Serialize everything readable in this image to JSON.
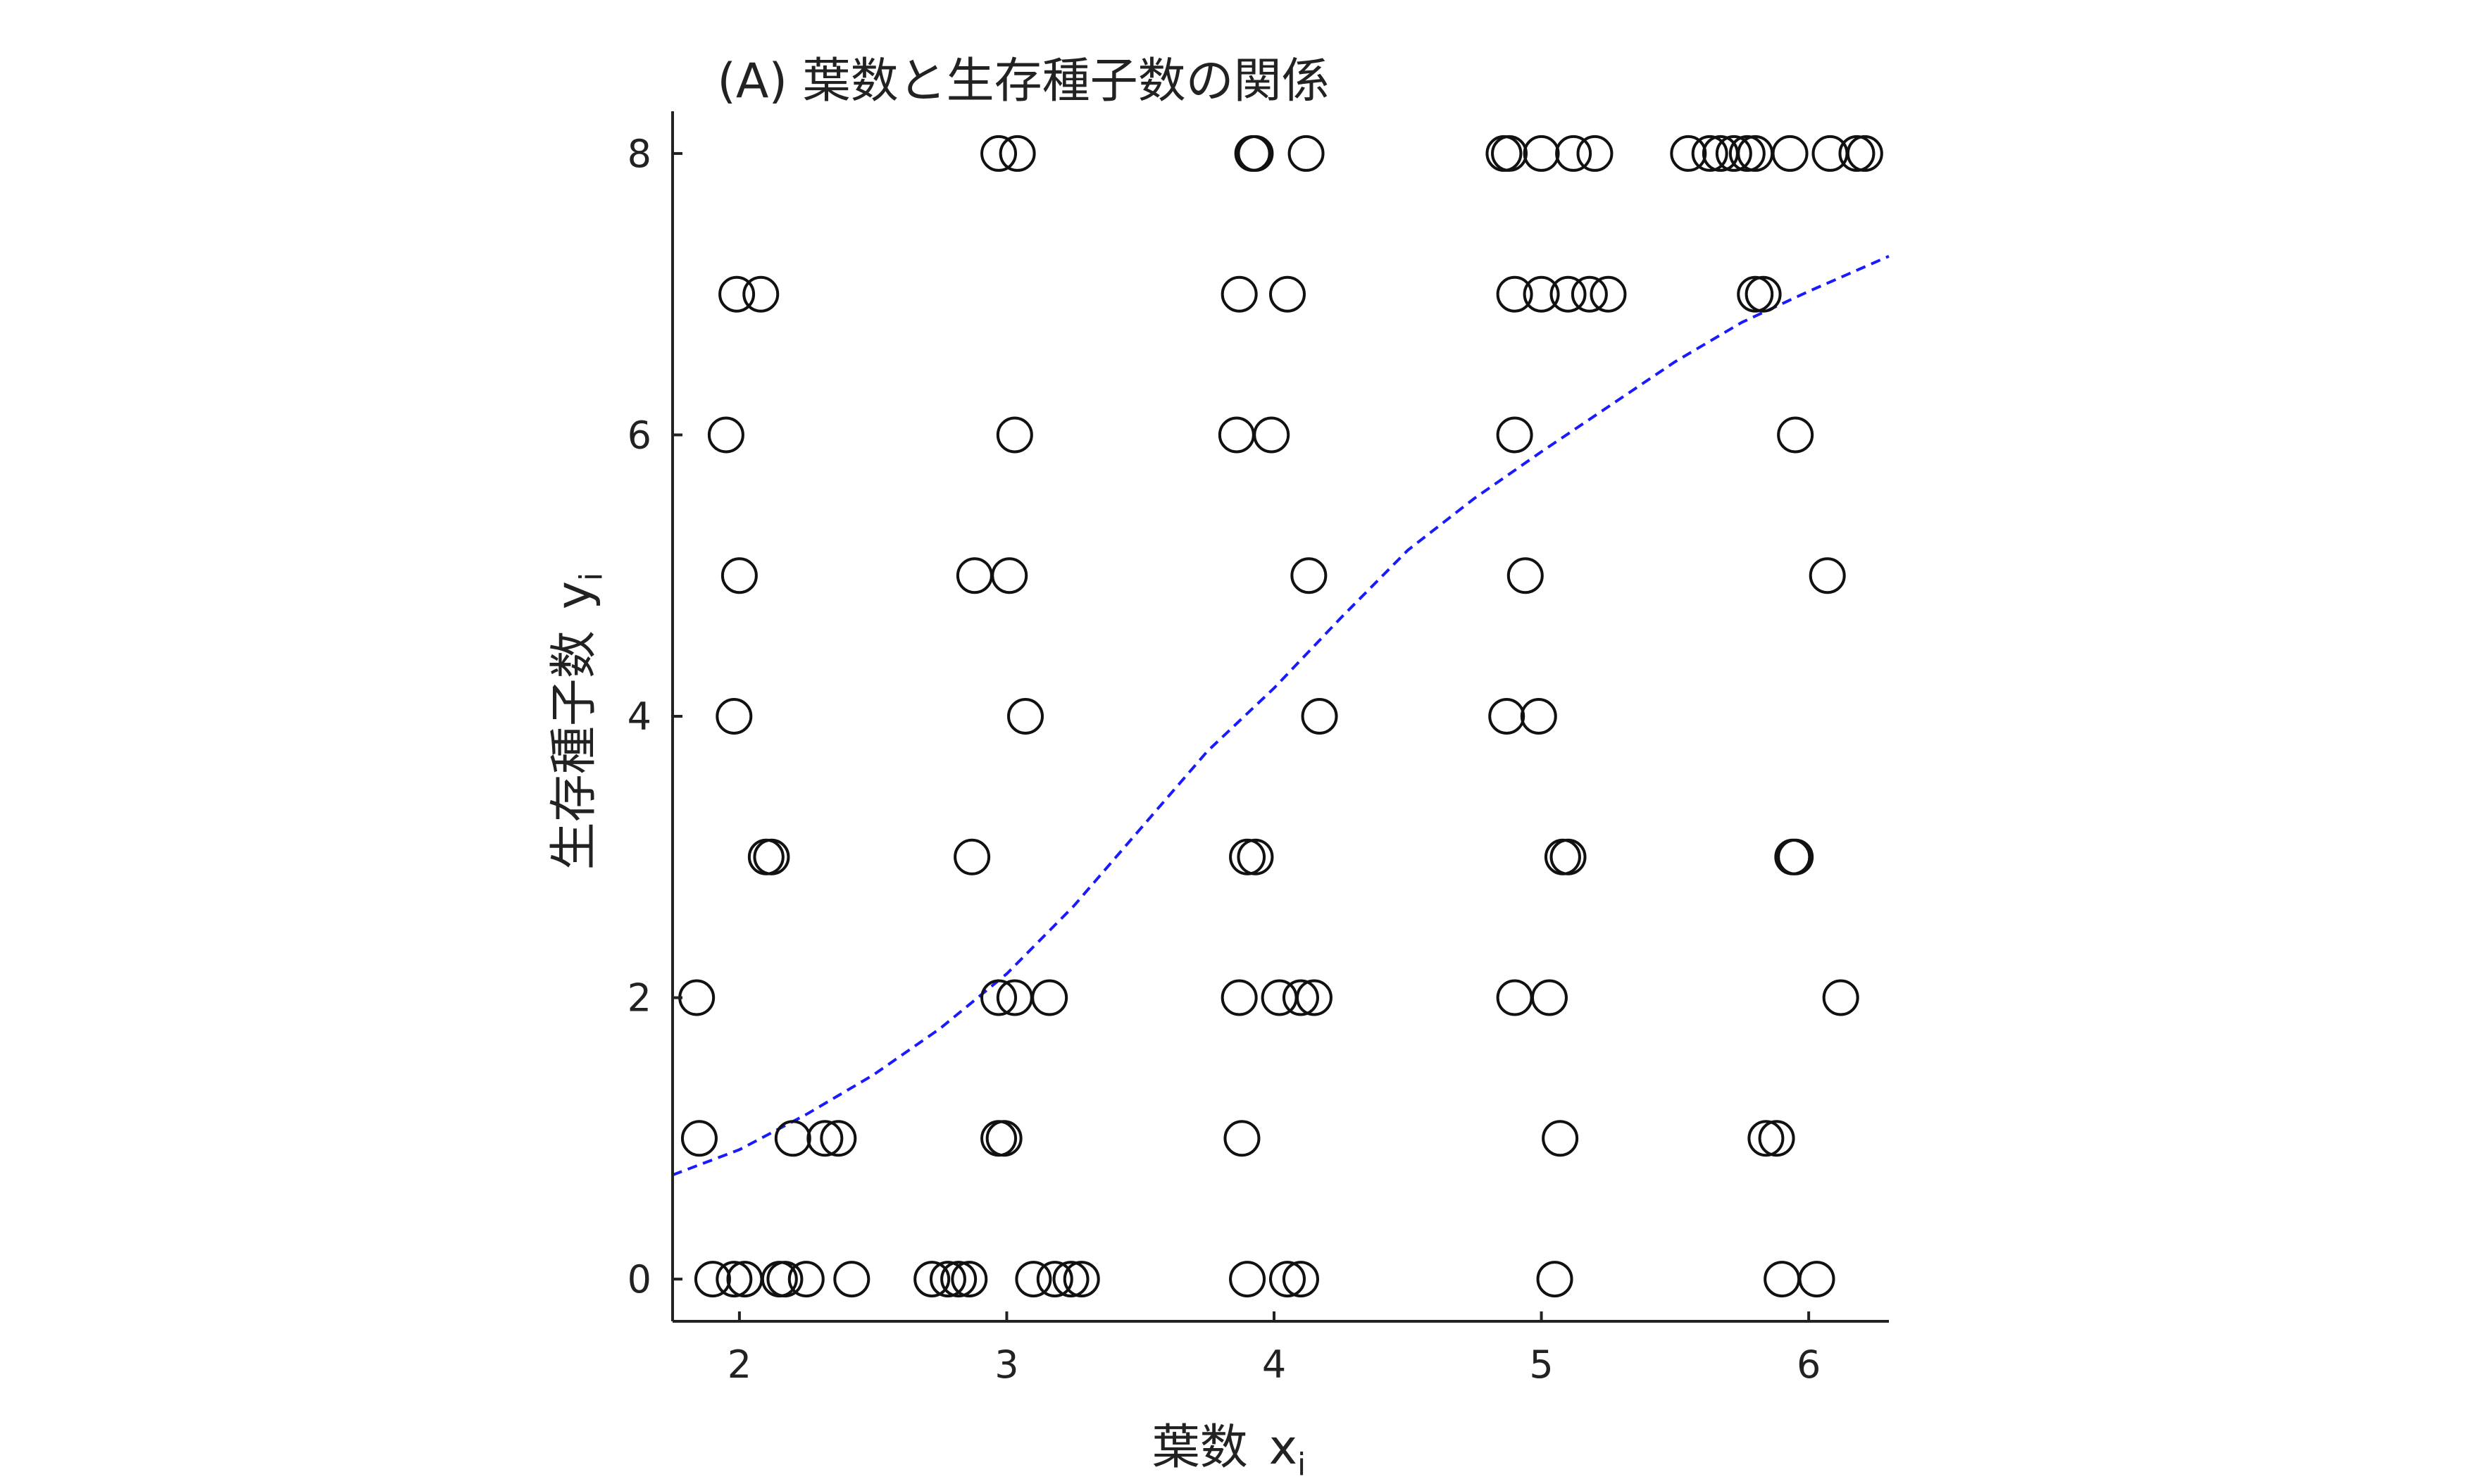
{
  "chart_data": {
    "type": "scatter",
    "title": "(A) 葉数と生存種子数の関係",
    "xlabel": {
      "main": "葉数",
      "var": "x",
      "sub": "i"
    },
    "ylabel": {
      "main": "生存種子数",
      "var": "y",
      "sub": "i"
    },
    "xlim": [
      1.75,
      6.3
    ],
    "ylim": [
      -0.3,
      8.3
    ],
    "xticks": [
      2,
      3,
      4,
      5,
      6
    ],
    "yticks": [
      0,
      2,
      4,
      6,
      8
    ],
    "grid": false,
    "series": [
      {
        "marker": "open-circle",
        "points": [
          [
            1.85,
            1
          ],
          [
            1.9,
            0
          ],
          [
            1.98,
            0
          ],
          [
            2.02,
            0
          ],
          [
            2.15,
            0
          ],
          [
            2.17,
            0
          ],
          [
            2.25,
            0
          ],
          [
            2.42,
            0
          ],
          [
            2.2,
            1
          ],
          [
            2.32,
            1
          ],
          [
            2.37,
            1
          ],
          [
            1.84,
            2
          ],
          [
            2.1,
            3
          ],
          [
            2.12,
            3
          ],
          [
            1.98,
            4
          ],
          [
            2.0,
            5
          ],
          [
            1.95,
            6
          ],
          [
            1.99,
            7
          ],
          [
            2.08,
            7
          ],
          [
            2.72,
            0
          ],
          [
            2.78,
            0
          ],
          [
            2.82,
            0
          ],
          [
            2.86,
            0
          ],
          [
            3.1,
            0
          ],
          [
            3.18,
            0
          ],
          [
            3.24,
            0
          ],
          [
            3.28,
            0
          ],
          [
            2.97,
            1
          ],
          [
            2.99,
            1
          ],
          [
            2.97,
            2
          ],
          [
            3.03,
            2
          ],
          [
            3.16,
            2
          ],
          [
            2.87,
            3
          ],
          [
            3.07,
            4
          ],
          [
            2.88,
            5
          ],
          [
            3.01,
            5
          ],
          [
            3.03,
            6
          ],
          [
            2.97,
            8
          ],
          [
            3.04,
            8
          ],
          [
            3.9,
            0
          ],
          [
            4.05,
            0
          ],
          [
            4.1,
            0
          ],
          [
            3.88,
            1
          ],
          [
            3.87,
            2
          ],
          [
            4.02,
            2
          ],
          [
            4.1,
            2
          ],
          [
            4.15,
            2
          ],
          [
            3.9,
            3
          ],
          [
            3.93,
            3
          ],
          [
            4.17,
            4
          ],
          [
            4.13,
            5
          ],
          [
            3.86,
            6
          ],
          [
            3.99,
            6
          ],
          [
            3.87,
            7
          ],
          [
            4.05,
            7
          ],
          [
            3.92,
            8
          ],
          [
            3.93,
            8
          ],
          [
            4.12,
            8
          ],
          [
            5.05,
            0
          ],
          [
            5.07,
            1
          ],
          [
            4.9,
            2
          ],
          [
            5.03,
            2
          ],
          [
            5.08,
            3
          ],
          [
            5.1,
            3
          ],
          [
            4.87,
            4
          ],
          [
            4.99,
            4
          ],
          [
            4.94,
            5
          ],
          [
            4.9,
            6
          ],
          [
            4.9,
            7
          ],
          [
            5.0,
            7
          ],
          [
            5.1,
            7
          ],
          [
            5.18,
            7
          ],
          [
            5.25,
            7
          ],
          [
            4.86,
            8
          ],
          [
            4.88,
            8
          ],
          [
            5.0,
            8
          ],
          [
            5.12,
            8
          ],
          [
            5.2,
            8
          ],
          [
            5.9,
            0
          ],
          [
            6.03,
            0
          ],
          [
            5.84,
            1
          ],
          [
            5.88,
            1
          ],
          [
            6.12,
            2
          ],
          [
            5.94,
            3
          ],
          [
            5.95,
            3
          ],
          [
            6.07,
            5
          ],
          [
            5.95,
            6
          ],
          [
            5.8,
            7
          ],
          [
            5.83,
            7
          ],
          [
            5.55,
            8
          ],
          [
            5.63,
            8
          ],
          [
            5.67,
            8
          ],
          [
            5.72,
            8
          ],
          [
            5.77,
            8
          ],
          [
            5.8,
            8
          ],
          [
            5.93,
            8
          ],
          [
            6.08,
            8
          ],
          [
            6.18,
            8
          ],
          [
            6.21,
            8
          ]
        ]
      },
      {
        "marker": "dashed-line",
        "color": "#1a1aff",
        "x": [
          1.75,
          2.0,
          2.25,
          2.5,
          2.75,
          3.0,
          3.25,
          3.5,
          3.75,
          4.0,
          4.25,
          4.5,
          4.75,
          5.0,
          5.25,
          5.5,
          5.75,
          6.0,
          6.3
        ],
        "y": [
          0.74,
          0.92,
          1.17,
          1.45,
          1.78,
          2.17,
          2.65,
          3.2,
          3.75,
          4.2,
          4.7,
          5.18,
          5.55,
          5.88,
          6.2,
          6.52,
          6.8,
          7.02,
          7.27
        ]
      }
    ]
  }
}
